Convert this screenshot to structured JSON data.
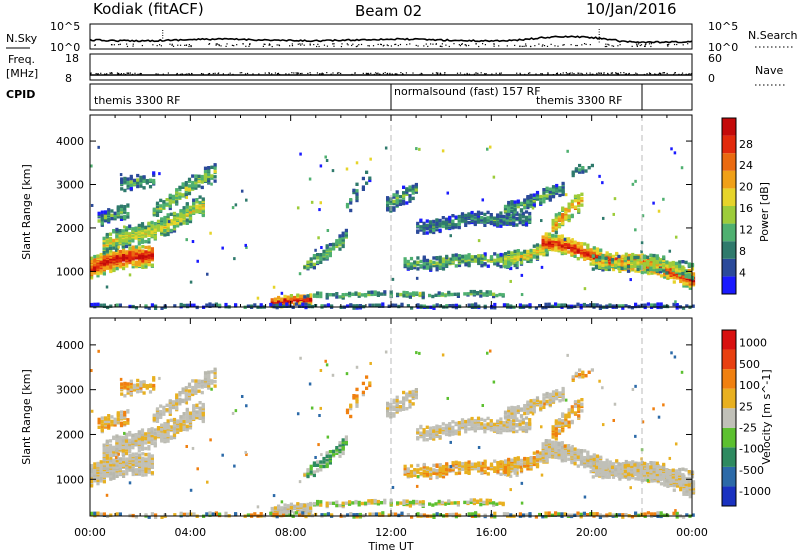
{
  "header": {
    "station": "Kodiak (fitACF)",
    "beam": "Beam 02",
    "date": "10/Jan/2016"
  },
  "strips": {
    "nsky_label": "N.Sky",
    "nsky_ticks": [
      "10^5",
      "10^0"
    ],
    "nsearch_label": "N.Search",
    "nsearch_ticks": [
      "10^5",
      "10^0"
    ],
    "freq_label": "Freq.",
    "freq_unit": "[MHz]",
    "freq_ticks": [
      "18",
      "8"
    ],
    "nave_label": "Nave",
    "nave_ticks": [
      "60",
      "0"
    ],
    "cpid_label": "CPID",
    "cpid_segments": [
      {
        "name": "themis 3300 RF",
        "start_hour": 0
      },
      {
        "name": "normalsound (fast) 157 RF",
        "start_hour": 12
      },
      {
        "name": "themis 3300 RF",
        "start_hour": 21.8
      }
    ]
  },
  "chart_data": [
    {
      "type": "heatmap",
      "title": "",
      "ylabel": "Slant Range [km]",
      "xlabel": "Time UT",
      "x_range_hours": [
        0,
        24
      ],
      "y_range_km": [
        180,
        4600
      ],
      "y_ticks": [
        1000,
        2000,
        3000,
        4000
      ],
      "colorbar": {
        "label": "Power [dB]",
        "ticks": [
          4,
          8,
          12,
          16,
          20,
          24,
          28
        ],
        "colors": [
          "#1a1aff",
          "#2b4a9a",
          "#2f7a6c",
          "#4fb070",
          "#9dcc3a",
          "#e6d42a",
          "#f0a018",
          "#ea6a10",
          "#e22a0c",
          "#c40a0a"
        ]
      }
    },
    {
      "type": "heatmap",
      "title": "",
      "ylabel": "Slant Range [km]",
      "xlabel": "Time UT",
      "x_range_hours": [
        0,
        24
      ],
      "y_range_km": [
        180,
        4600
      ],
      "y_ticks": [
        1000,
        2000,
        3000,
        4000
      ],
      "colorbar": {
        "label": "Velocity [m s^-1]",
        "ticks": [
          "1000",
          "500",
          "100",
          "25",
          "-25",
          "-100",
          "-500",
          "-1000"
        ],
        "colors": [
          "#1a32c0",
          "#2c6aa8",
          "#2e8a60",
          "#5cc030",
          "#c0c0b8",
          "#e8b020",
          "#f08010",
          "#e84010",
          "#d81010"
        ]
      }
    }
  ],
  "time_axis": {
    "label": "Time UT",
    "ticks": [
      "00:00",
      "04:00",
      "08:00",
      "12:00",
      "16:00",
      "20:00",
      "00:00"
    ]
  }
}
